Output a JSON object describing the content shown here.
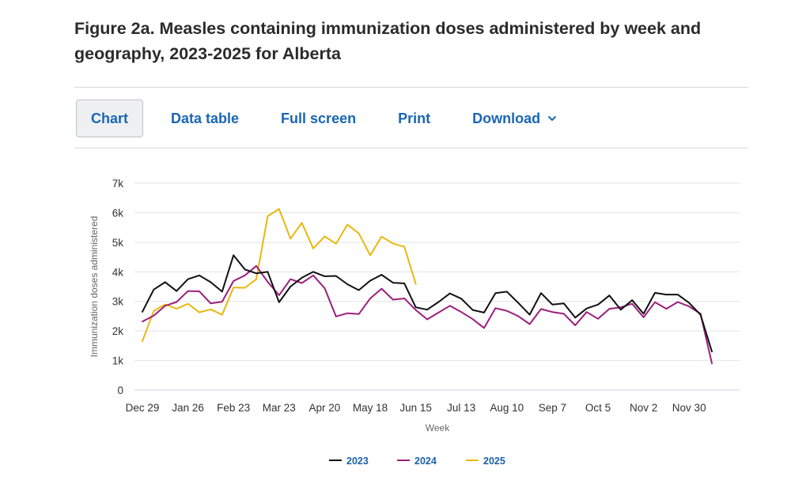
{
  "title": "Figure 2a. Measles containing immunization doses administered by week and geography, 2023-2025 for Alberta",
  "toolbar": {
    "chart_label": "Chart",
    "data_table_label": "Data table",
    "full_screen_label": "Full screen",
    "print_label": "Print",
    "download_label": "Download"
  },
  "colors": {
    "s2023": "#111111",
    "s2024": "#9c1f7c",
    "s2025": "#e8b80f",
    "grid": "#e3e3e3",
    "link": "#1a66b5"
  },
  "chart_data": {
    "type": "line",
    "title": "Figure 2a. Measles containing immunization doses administered by week and geography, 2023-2025 for Alberta",
    "xlabel": "Week",
    "ylabel": "Immunization doses administered",
    "ylim": [
      0,
      7000
    ],
    "yticks": [
      0,
      1000,
      2000,
      3000,
      4000,
      5000,
      6000,
      7000
    ],
    "ytick_labels": [
      "0",
      "1k",
      "2k",
      "3k",
      "4k",
      "5k",
      "6k",
      "7k"
    ],
    "xtick_labels": [
      "Dec 29",
      "Jan 26",
      "Feb 23",
      "Mar 23",
      "Apr 20",
      "May 18",
      "Jun 15",
      "Jul 13",
      "Aug 10",
      "Sep 7",
      "Oct 5",
      "Nov 2",
      "Nov 30"
    ],
    "xtick_week_index": [
      0,
      4,
      8,
      12,
      16,
      20,
      24,
      28,
      32,
      36,
      40,
      44,
      48
    ],
    "n_weeks": 53,
    "grid": true,
    "legend_position": "bottom-center",
    "series": [
      {
        "name": "2023",
        "values": [
          2650,
          3400,
          3650,
          3350,
          3750,
          3880,
          3650,
          3330,
          4560,
          4080,
          3950,
          4000,
          2970,
          3500,
          3800,
          4000,
          3850,
          3860,
          3580,
          3380,
          3700,
          3900,
          3630,
          3610,
          2800,
          2720,
          2980,
          3270,
          3090,
          2710,
          2620,
          3280,
          3330,
          2950,
          2550,
          3280,
          2890,
          2930,
          2450,
          2760,
          2890,
          3200,
          2720,
          3040,
          2580,
          3290,
          3230,
          3230,
          2950,
          2550,
          1300
        ]
      },
      {
        "name": "2024",
        "values": [
          2320,
          2520,
          2850,
          2980,
          3350,
          3340,
          2930,
          2990,
          3690,
          3880,
          4200,
          3660,
          3210,
          3750,
          3620,
          3880,
          3450,
          2490,
          2600,
          2570,
          3100,
          3430,
          3060,
          3100,
          2710,
          2390,
          2620,
          2850,
          2640,
          2400,
          2100,
          2770,
          2680,
          2500,
          2230,
          2740,
          2640,
          2580,
          2190,
          2640,
          2410,
          2750,
          2800,
          2920,
          2460,
          2970,
          2750,
          2980,
          2830,
          2580,
          900
        ]
      },
      {
        "name": "2025",
        "values": [
          1650,
          2680,
          2900,
          2750,
          2920,
          2630,
          2730,
          2550,
          3470,
          3460,
          3750,
          5880,
          6130,
          5120,
          5660,
          4790,
          5200,
          4950,
          5600,
          5300,
          4560,
          5190,
          4960,
          4850,
          3590
        ]
      }
    ]
  },
  "legend": {
    "items": [
      "2023",
      "2024",
      "2025"
    ]
  }
}
